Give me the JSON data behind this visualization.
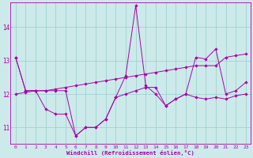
{
  "xlabel": "Windchill (Refroidissement éolien,°C)",
  "hours": [
    0,
    1,
    2,
    3,
    4,
    5,
    6,
    7,
    8,
    9,
    10,
    11,
    12,
    13,
    14,
    15,
    16,
    17,
    18,
    19,
    20,
    21,
    22,
    23
  ],
  "line1": [
    13.1,
    12.1,
    12.1,
    12.1,
    12.1,
    12.1,
    10.75,
    11.0,
    11.0,
    11.25,
    11.9,
    12.55,
    14.65,
    12.25,
    12.0,
    11.65,
    11.85,
    12.0,
    13.1,
    13.05,
    13.35,
    12.0,
    12.1,
    12.35
  ],
  "line2": [
    13.1,
    12.1,
    12.1,
    11.55,
    11.4,
    11.4,
    10.75,
    11.0,
    11.0,
    11.25,
    11.9,
    12.0,
    12.1,
    12.2,
    12.2,
    11.65,
    11.85,
    12.0,
    11.9,
    11.85,
    11.9,
    11.85,
    11.95,
    12.0
  ],
  "line3": [
    12.0,
    12.05,
    12.1,
    12.1,
    12.15,
    12.2,
    12.25,
    12.3,
    12.35,
    12.4,
    12.45,
    12.5,
    12.55,
    12.6,
    12.65,
    12.7,
    12.75,
    12.8,
    12.85,
    12.85,
    12.85,
    13.1,
    13.15,
    13.2
  ],
  "ylim": [
    10.5,
    14.75
  ],
  "yticks": [
    11,
    12,
    13,
    14
  ],
  "xlim": [
    -0.5,
    23.5
  ],
  "bg_color": "#cceaea",
  "line_color": "#aa00aa",
  "grid_color": "#99cccc",
  "spine_color": "#aa00aa"
}
